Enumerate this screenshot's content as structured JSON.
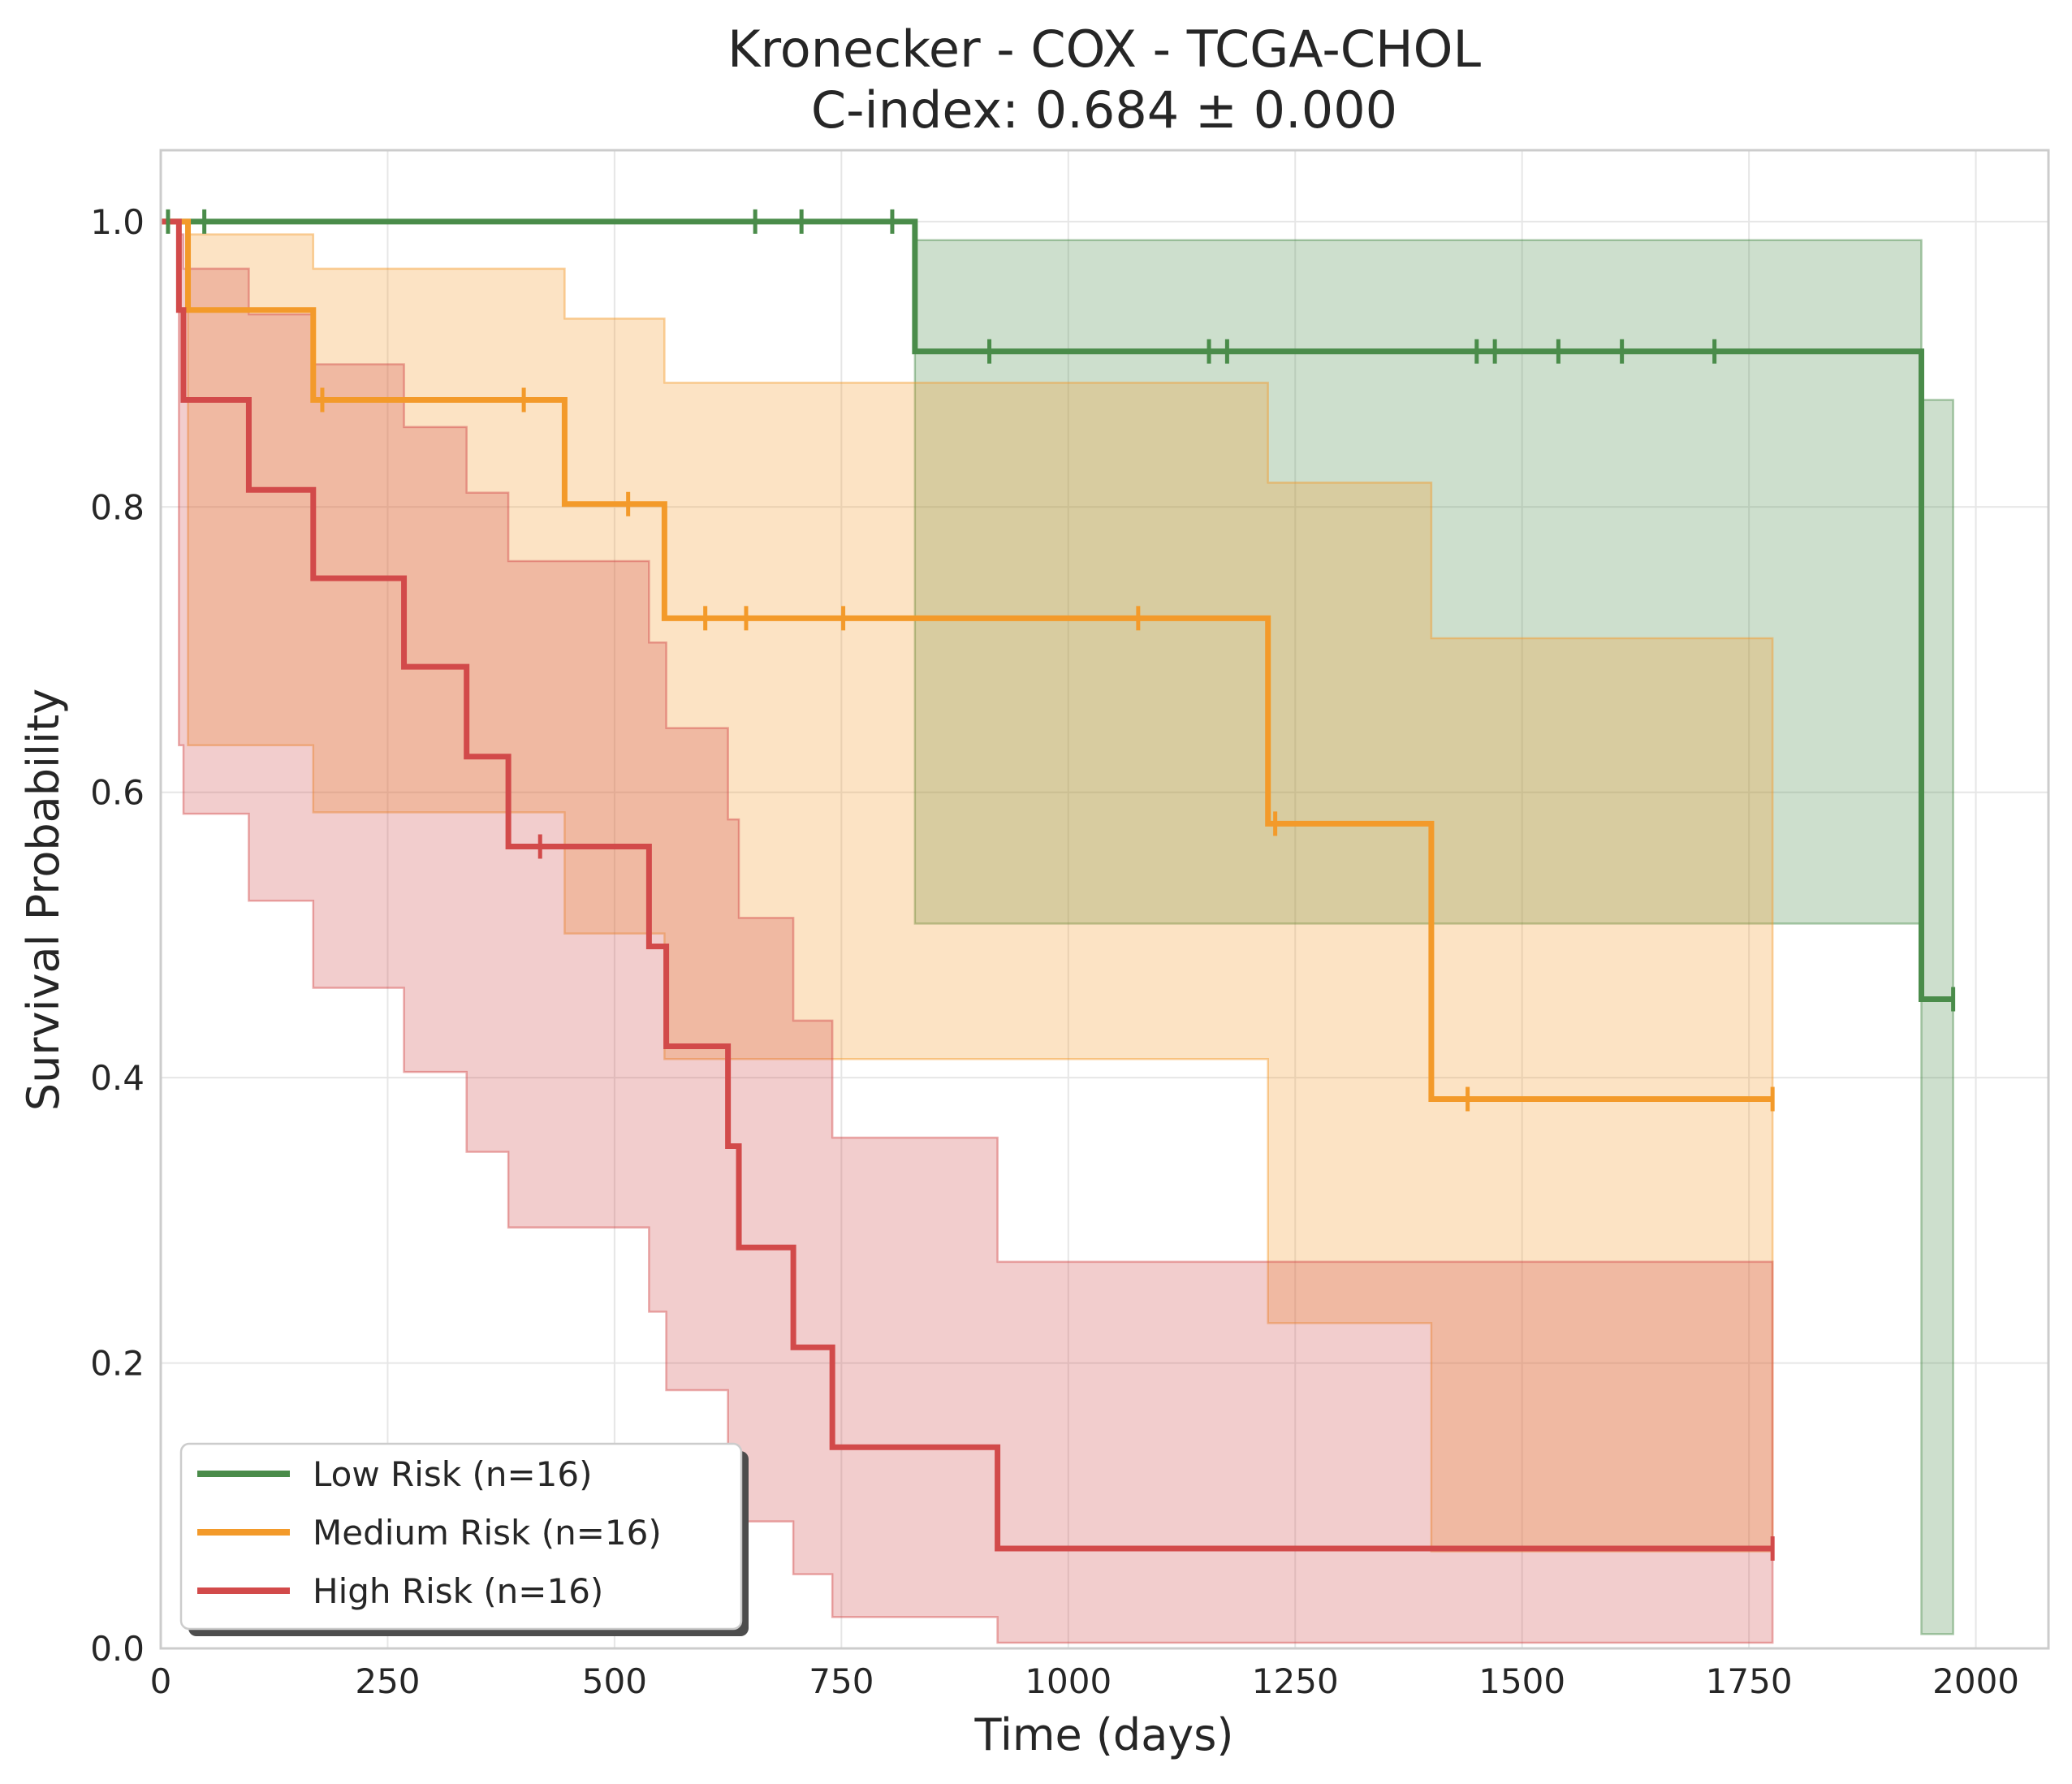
{
  "chart_data": {
    "type": "line",
    "subtype": "kaplan-meier",
    "title": "Kronecker - COX - TCGA-CHOL",
    "subtitle": "C-index: 0.684 ± 0.000",
    "xlabel": "Time (days)",
    "ylabel": "Survival Probability",
    "xlim": [
      0,
      2080
    ],
    "ylim": [
      0,
      1.05
    ],
    "xticks": [
      0,
      250,
      500,
      750,
      1000,
      1250,
      1500,
      1750,
      2000
    ],
    "xtick_labels": [
      "0",
      "250",
      "500",
      "750",
      "1000",
      "1250",
      "1500",
      "1750",
      "2000"
    ],
    "yticks": [
      0.0,
      0.2,
      0.4,
      0.6,
      0.8,
      1.0
    ],
    "ytick_labels": [
      "0.0",
      "0.2",
      "0.4",
      "0.6",
      "0.8",
      "1.0"
    ],
    "grid": true,
    "legend_position": "lower-left",
    "series": [
      {
        "name": "Low Risk (n=16)",
        "color": "#4a8c4a",
        "steps": [
          [
            0,
            1.0
          ],
          [
            831,
            0.909
          ],
          [
            1940,
            0.455
          ],
          [
            1975,
            0.455
          ]
        ],
        "ci": [
          [
            0,
            1.0,
            1.0
          ],
          [
            831,
            0.508,
            0.987
          ],
          [
            1940,
            0.01,
            0.875
          ],
          [
            1975,
            0.01,
            0.875
          ]
        ],
        "censored": [
          [
            8,
            1.0
          ],
          [
            48,
            1.0
          ],
          [
            655,
            1.0
          ],
          [
            706,
            1.0
          ],
          [
            806,
            1.0
          ],
          [
            913,
            0.909
          ],
          [
            1155,
            0.909
          ],
          [
            1175,
            0.909
          ],
          [
            1450,
            0.909
          ],
          [
            1470,
            0.909
          ],
          [
            1540,
            0.909
          ],
          [
            1610,
            0.909
          ],
          [
            1712,
            0.909
          ],
          [
            1975,
            0.455
          ]
        ]
      },
      {
        "name": "Medium Risk (n=16)",
        "color": "#f39a2a",
        "steps": [
          [
            0,
            1.0
          ],
          [
            30,
            0.938
          ],
          [
            168,
            0.875
          ],
          [
            445,
            0.802
          ],
          [
            555,
            0.722
          ],
          [
            1220,
            0.578
          ],
          [
            1400,
            0.385
          ],
          [
            1776,
            0.385
          ]
        ],
        "ci": [
          [
            0,
            1.0,
            1.0
          ],
          [
            30,
            0.633,
            0.991
          ],
          [
            168,
            0.586,
            0.967
          ],
          [
            445,
            0.501,
            0.932
          ],
          [
            555,
            0.413,
            0.887
          ],
          [
            1220,
            0.228,
            0.817
          ],
          [
            1400,
            0.068,
            0.708
          ],
          [
            1776,
            0.068,
            0.708
          ]
        ],
        "censored": [
          [
            178,
            0.875
          ],
          [
            400,
            0.875
          ],
          [
            515,
            0.802
          ],
          [
            600,
            0.722
          ],
          [
            645,
            0.722
          ],
          [
            752,
            0.722
          ],
          [
            1077,
            0.722
          ],
          [
            1228,
            0.578
          ],
          [
            1440,
            0.385
          ],
          [
            1776,
            0.385
          ]
        ]
      },
      {
        "name": "High Risk (n=16)",
        "color": "#d24a4a",
        "steps": [
          [
            0,
            1.0
          ],
          [
            20,
            0.938
          ],
          [
            25,
            0.875
          ],
          [
            97,
            0.812
          ],
          [
            168,
            0.75
          ],
          [
            268,
            0.688
          ],
          [
            337,
            0.625
          ],
          [
            383,
            0.562
          ],
          [
            538,
            0.492
          ],
          [
            557,
            0.422
          ],
          [
            625,
            0.352
          ],
          [
            637,
            0.281
          ],
          [
            697,
            0.211
          ],
          [
            740,
            0.141
          ],
          [
            922,
            0.07
          ],
          [
            1776,
            0.07
          ]
        ],
        "ci": [
          [
            0,
            1.0,
            1.0
          ],
          [
            20,
            0.633,
            0.991
          ],
          [
            25,
            0.585,
            0.967
          ],
          [
            97,
            0.524,
            0.935
          ],
          [
            168,
            0.463,
            0.9
          ],
          [
            268,
            0.404,
            0.856
          ],
          [
            337,
            0.348,
            0.81
          ],
          [
            383,
            0.295,
            0.762
          ],
          [
            538,
            0.236,
            0.705
          ],
          [
            557,
            0.181,
            0.645
          ],
          [
            625,
            0.132,
            0.581
          ],
          [
            637,
            0.089,
            0.512
          ],
          [
            697,
            0.052,
            0.44
          ],
          [
            740,
            0.022,
            0.358
          ],
          [
            922,
            0.004,
            0.271
          ],
          [
            1776,
            0.004,
            0.271
          ]
        ],
        "censored": [
          [
            418,
            0.562
          ],
          [
            1776,
            0.07
          ]
        ]
      }
    ]
  }
}
